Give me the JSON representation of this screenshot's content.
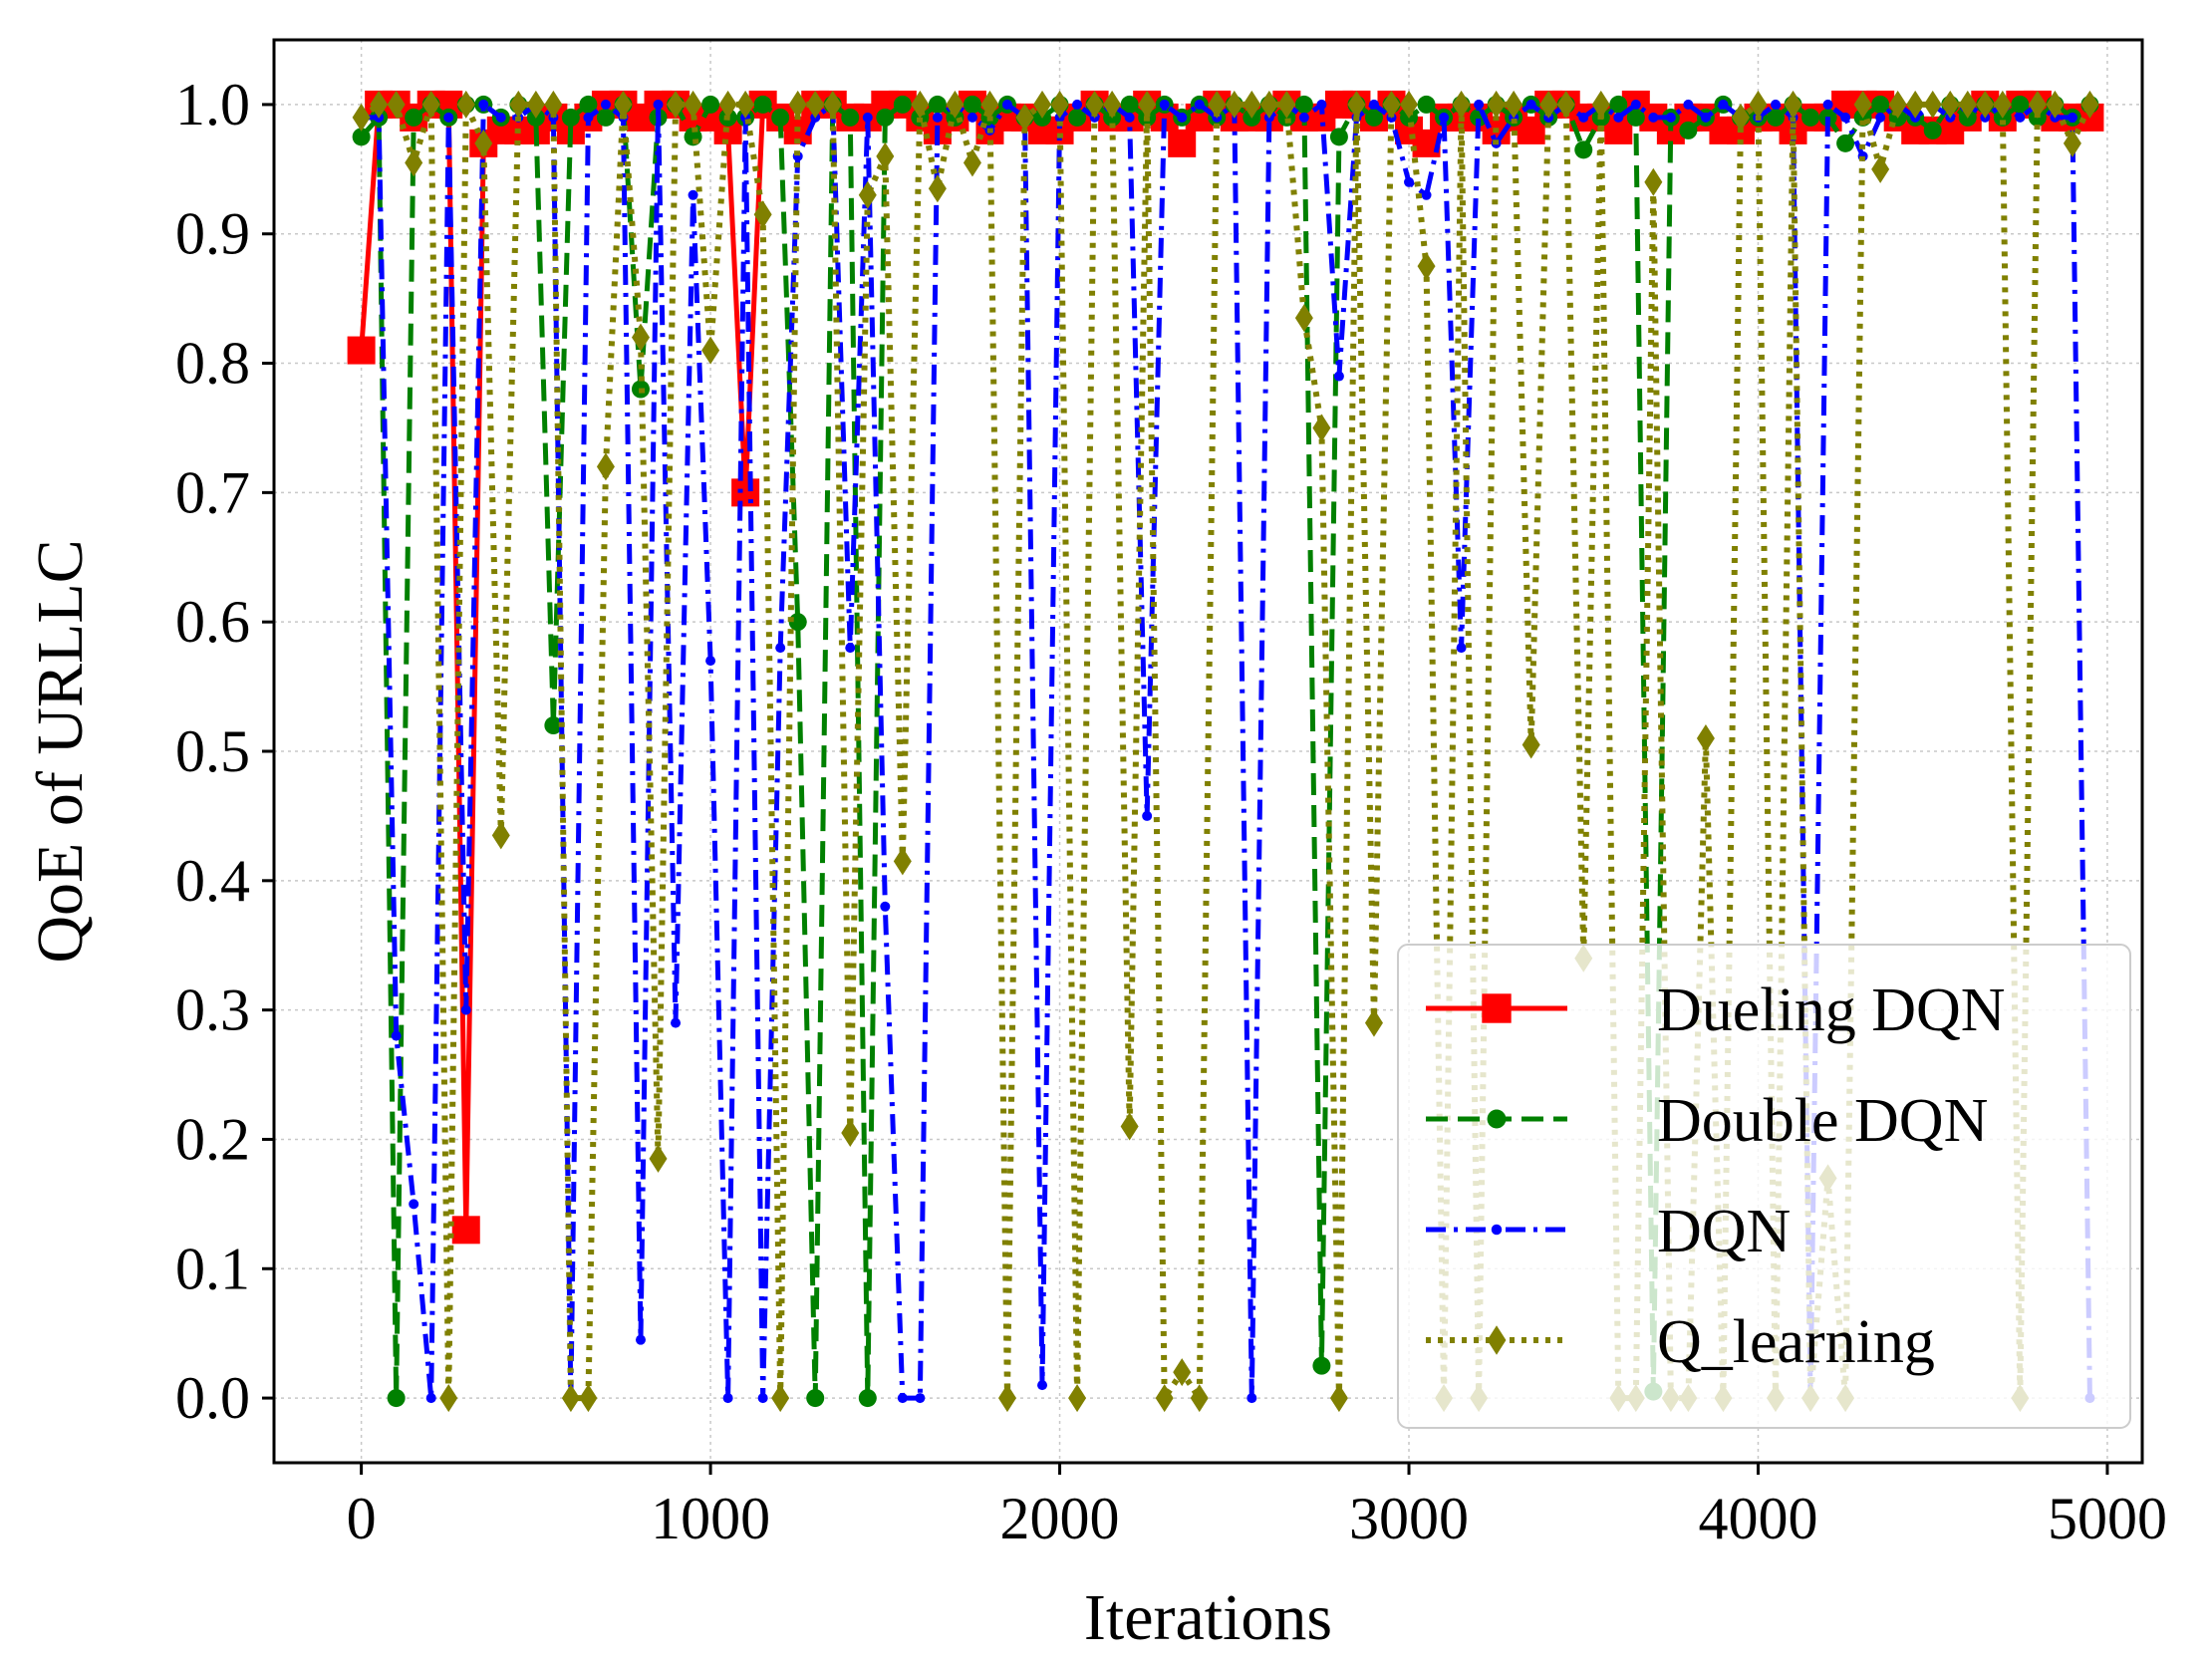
{
  "chart_data": {
    "type": "line",
    "title": "",
    "xlabel": "Iterations",
    "ylabel": "QoE of URLLC",
    "xlim": [
      -250,
      5100
    ],
    "ylim": [
      -0.05,
      1.05
    ],
    "xticks": [
      0,
      1000,
      2000,
      3000,
      4000,
      5000
    ],
    "yticks": [
      0.0,
      0.1,
      0.2,
      0.3,
      0.4,
      0.5,
      0.6,
      0.7,
      0.8,
      0.9,
      1.0
    ],
    "xtick_labels": [
      "0",
      "1000",
      "2000",
      "3000",
      "4000",
      "5000"
    ],
    "ytick_labels": [
      "0.0",
      "0.1",
      "0.2",
      "0.3",
      "0.4",
      "0.5",
      "0.6",
      "0.7",
      "0.8",
      "0.9",
      "1.0"
    ],
    "grid": true,
    "legend_position": "lower-right",
    "series": [
      {
        "name": "Dueling DQN",
        "color": "#ff0000",
        "linestyle": "solid",
        "marker": "square",
        "x": [
          0,
          50,
          100,
          150,
          200,
          250,
          300,
          350,
          400,
          450,
          500,
          550,
          600,
          650,
          700,
          750,
          800,
          850,
          900,
          950,
          1000,
          1050,
          1100,
          1150,
          1200,
          1250,
          1300,
          1350,
          1400,
          1450,
          1500,
          1550,
          1600,
          1650,
          1700,
          1750,
          1800,
          1850,
          1900,
          1950,
          2000,
          2050,
          2100,
          2150,
          2200,
          2250,
          2300,
          2350,
          2400,
          2450,
          2500,
          2550,
          2600,
          2650,
          2700,
          2750,
          2800,
          2850,
          2900,
          2950,
          3000,
          3050,
          3100,
          3150,
          3200,
          3250,
          3300,
          3350,
          3400,
          3450,
          3500,
          3550,
          3600,
          3650,
          3700,
          3750,
          3800,
          3850,
          3900,
          3950,
          4000,
          4050,
          4100,
          4150,
          4200,
          4250,
          4300,
          4350,
          4400,
          4450,
          4500,
          4550,
          4600,
          4650,
          4700,
          4750,
          4800,
          4850,
          4900,
          4950
        ],
        "values": [
          0.81,
          1.0,
          1.0,
          0.99,
          1.0,
          1.0,
          0.13,
          0.97,
          0.98,
          0.98,
          0.98,
          0.99,
          0.98,
          0.99,
          1.0,
          1.0,
          0.99,
          1.0,
          1.0,
          0.99,
          0.99,
          0.98,
          0.7,
          1.0,
          0.99,
          0.98,
          1.0,
          1.0,
          0.99,
          0.99,
          1.0,
          1.0,
          0.99,
          0.98,
          0.99,
          1.0,
          0.98,
          0.99,
          0.99,
          0.98,
          0.98,
          0.99,
          1.0,
          0.99,
          0.99,
          1.0,
          0.99,
          0.97,
          0.99,
          1.0,
          0.99,
          0.99,
          0.99,
          1.0,
          0.99,
          0.99,
          1.0,
          1.0,
          0.99,
          1.0,
          0.98,
          0.97,
          0.99,
          0.99,
          0.99,
          0.98,
          0.99,
          0.98,
          1.0,
          1.0,
          0.99,
          0.99,
          0.98,
          1.0,
          0.99,
          0.98,
          0.99,
          0.99,
          0.98,
          0.98,
          0.99,
          0.99,
          0.98,
          0.99,
          0.99,
          1.0,
          1.0,
          1.0,
          0.99,
          0.98,
          0.98,
          0.98,
          0.99,
          1.0,
          0.99,
          1.0,
          1.0,
          0.99,
          0.99,
          0.99
        ]
      },
      {
        "name": "Double DQN",
        "color": "#008000",
        "linestyle": "dashed",
        "marker": "circle",
        "x": [
          0,
          50,
          100,
          150,
          200,
          250,
          300,
          350,
          400,
          450,
          500,
          550,
          600,
          650,
          700,
          750,
          800,
          850,
          900,
          950,
          1000,
          1050,
          1100,
          1150,
          1200,
          1250,
          1300,
          1350,
          1400,
          1450,
          1500,
          1550,
          1600,
          1650,
          1700,
          1750,
          1800,
          1850,
          1900,
          1950,
          2000,
          2050,
          2100,
          2150,
          2200,
          2250,
          2300,
          2350,
          2400,
          2450,
          2500,
          2550,
          2600,
          2650,
          2700,
          2750,
          2800,
          2850,
          2900,
          2950,
          3000,
          3050,
          3100,
          3150,
          3200,
          3250,
          3300,
          3350,
          3400,
          3450,
          3500,
          3550,
          3600,
          3650,
          3700,
          3750,
          3800,
          3850,
          3900,
          3950,
          4000,
          4050,
          4100,
          4150,
          4200,
          4250,
          4300,
          4350,
          4400,
          4450,
          4500,
          4550,
          4600,
          4650,
          4700,
          4750,
          4800,
          4850,
          4900,
          4950
        ],
        "values": [
          0.975,
          0.99,
          0.0,
          0.99,
          1.0,
          0.99,
          1.0,
          1.0,
          0.99,
          1.0,
          0.99,
          0.52,
          0.99,
          1.0,
          0.99,
          1.0,
          0.78,
          0.99,
          1.0,
          0.975,
          1.0,
          0.99,
          0.99,
          1.0,
          0.99,
          0.6,
          0.0,
          1.0,
          0.99,
          0.0,
          0.99,
          1.0,
          0.99,
          1.0,
          0.99,
          1.0,
          0.99,
          1.0,
          0.99,
          0.99,
          1.0,
          0.99,
          1.0,
          0.99,
          1.0,
          0.99,
          1.0,
          0.99,
          1.0,
          0.99,
          1.0,
          0.99,
          1.0,
          0.99,
          1.0,
          0.025,
          0.975,
          1.0,
          0.99,
          1.0,
          0.99,
          1.0,
          0.99,
          1.0,
          0.99,
          1.0,
          0.99,
          1.0,
          0.99,
          1.0,
          0.965,
          0.99,
          1.0,
          0.99,
          0.005,
          0.99,
          0.98,
          0.99,
          1.0,
          0.99,
          0.99,
          0.99,
          1.0,
          0.99,
          0.99,
          0.97,
          0.99,
          1.0,
          0.99,
          0.99,
          0.98,
          1.0,
          0.99,
          1.0,
          0.99,
          1.0,
          0.99,
          1.0,
          0.99,
          1.0
        ]
      },
      {
        "name": "DQN",
        "color": "#0000ff",
        "linestyle": "dashdot",
        "marker": "point",
        "x": [
          0,
          50,
          100,
          150,
          200,
          250,
          300,
          350,
          400,
          450,
          500,
          550,
          600,
          650,
          700,
          750,
          800,
          850,
          900,
          950,
          1000,
          1050,
          1100,
          1150,
          1200,
          1250,
          1300,
          1350,
          1400,
          1450,
          1500,
          1550,
          1600,
          1650,
          1700,
          1750,
          1800,
          1850,
          1900,
          1950,
          2000,
          2050,
          2100,
          2150,
          2200,
          2250,
          2300,
          2350,
          2400,
          2450,
          2500,
          2550,
          2600,
          2650,
          2700,
          2750,
          2800,
          2850,
          2900,
          2950,
          3000,
          3050,
          3100,
          3150,
          3200,
          3250,
          3300,
          3350,
          3400,
          3450,
          3500,
          3550,
          3600,
          3650,
          3700,
          3750,
          3800,
          3850,
          3900,
          3950,
          4000,
          4050,
          4100,
          4150,
          4200,
          4250,
          4300,
          4350,
          4400,
          4450,
          4500,
          4550,
          4600,
          4650,
          4700,
          4750,
          4800,
          4850,
          4900,
          4950
        ],
        "values": [
          0.99,
          0.99,
          0.28,
          0.15,
          0.0,
          0.99,
          0.3,
          1.0,
          0.99,
          0.99,
          1.0,
          0.99,
          0.0,
          0.99,
          1.0,
          0.99,
          0.045,
          1.0,
          0.29,
          0.93,
          0.57,
          0.0,
          0.99,
          0.0,
          0.58,
          0.96,
          0.99,
          1.0,
          0.58,
          0.99,
          0.38,
          0.0,
          0.0,
          0.99,
          1.0,
          0.99,
          0.98,
          1.0,
          0.99,
          0.01,
          0.99,
          1.0,
          0.99,
          1.0,
          0.99,
          0.45,
          1.0,
          0.99,
          1.0,
          0.99,
          1.0,
          0.0,
          0.99,
          1.0,
          0.99,
          1.0,
          0.79,
          0.99,
          1.0,
          0.99,
          0.94,
          0.93,
          0.99,
          0.58,
          1.0,
          0.97,
          0.99,
          1.0,
          0.99,
          1.0,
          0.99,
          1.0,
          0.99,
          1.0,
          0.99,
          0.99,
          1.0,
          0.99,
          1.0,
          0.99,
          0.99,
          1.0,
          0.99,
          0.0,
          1.0,
          0.99,
          0.96,
          0.99,
          1.0,
          0.99,
          1.0,
          0.99,
          1.0,
          0.99,
          1.0,
          0.99,
          1.0,
          0.99,
          0.99,
          0.0
        ]
      },
      {
        "name": "Q_learning",
        "color": "#808000",
        "linestyle": "dotted",
        "marker": "diamond",
        "x": [
          0,
          50,
          100,
          150,
          200,
          250,
          300,
          350,
          400,
          450,
          500,
          550,
          600,
          650,
          700,
          750,
          800,
          850,
          900,
          950,
          1000,
          1050,
          1100,
          1150,
          1200,
          1250,
          1300,
          1350,
          1400,
          1450,
          1500,
          1550,
          1600,
          1650,
          1700,
          1750,
          1800,
          1850,
          1900,
          1950,
          2000,
          2050,
          2100,
          2150,
          2200,
          2250,
          2300,
          2350,
          2400,
          2450,
          2500,
          2550,
          2600,
          2650,
          2700,
          2750,
          2800,
          2850,
          2900,
          2950,
          3000,
          3050,
          3100,
          3150,
          3200,
          3250,
          3300,
          3350,
          3400,
          3450,
          3500,
          3550,
          3600,
          3650,
          3700,
          3750,
          3800,
          3850,
          3900,
          3950,
          4000,
          4050,
          4100,
          4150,
          4200,
          4250,
          4300,
          4350,
          4400,
          4450,
          4500,
          4550,
          4600,
          4650,
          4700,
          4750,
          4800,
          4850,
          4900,
          4950
        ],
        "values": [
          0.99,
          1.0,
          1.0,
          0.955,
          1.0,
          0.0,
          1.0,
          0.97,
          0.435,
          1.0,
          1.0,
          1.0,
          0.0,
          0.0,
          0.72,
          1.0,
          0.82,
          0.185,
          1.0,
          1.0,
          0.81,
          1.0,
          1.0,
          0.915,
          0.0,
          1.0,
          1.0,
          1.0,
          0.205,
          0.93,
          0.96,
          0.415,
          1.0,
          0.935,
          1.0,
          0.955,
          1.0,
          0.0,
          0.99,
          1.0,
          1.0,
          0.0,
          1.0,
          1.0,
          0.21,
          1.0,
          0.0,
          0.02,
          0.0,
          1.0,
          1.0,
          1.0,
          1.0,
          1.0,
          0.835,
          0.75,
          0.0,
          1.0,
          0.29,
          1.0,
          1.0,
          0.875,
          0.0,
          1.0,
          0.0,
          1.0,
          1.0,
          0.505,
          1.0,
          1.0,
          0.34,
          1.0,
          0.0,
          0.0,
          0.94,
          0.0,
          0.0,
          0.51,
          0.0,
          0.99,
          1.0,
          0.0,
          1.0,
          0.0,
          0.17,
          0.0,
          1.0,
          0.95,
          1.0,
          1.0,
          1.0,
          1.0,
          1.0,
          1.0,
          1.0,
          0.0,
          1.0,
          1.0,
          0.97,
          1.0
        ]
      }
    ]
  }
}
